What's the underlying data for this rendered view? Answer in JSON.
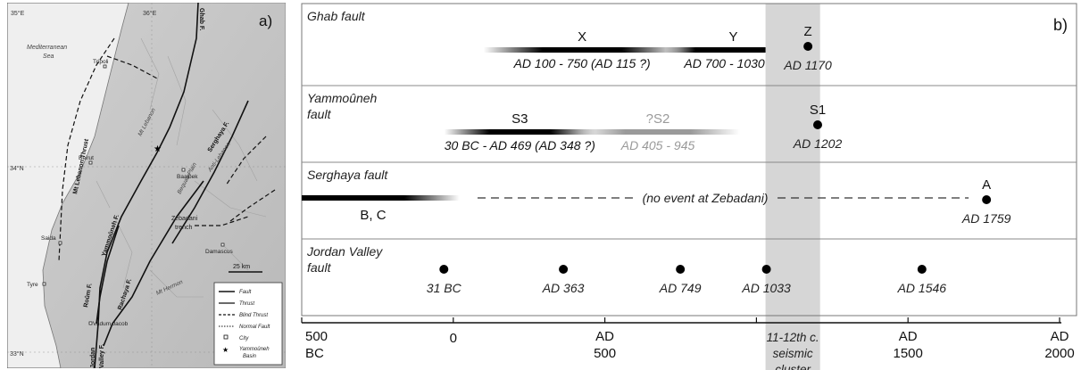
{
  "map": {
    "panel_label": "a)",
    "lon_labels": [
      "35°E",
      "36°E"
    ],
    "lat_labels": [
      "34°N",
      "33°N"
    ],
    "sea_label": [
      "Mediterranean",
      "Sea"
    ],
    "cities": [
      "Tripoli",
      "Beirut",
      "Baalbek",
      "Saida",
      "Tyre",
      "Damascus",
      "Vadum Jacob"
    ],
    "region_labels": {
      "mt_lebanon": "Mt Lebanon",
      "anti_lebanon": "Anti-Lebanon",
      "bequaa": "Bequaa Plain",
      "mt_hermon": "Mt Hermon",
      "zebadani": [
        "Zebadani",
        "trench"
      ]
    },
    "fault_labels": {
      "ghab": "Ghab F.",
      "serghaya": "Serghaya F.",
      "yammouneh": "Yammoûneh F.",
      "roum": "Roûm F.",
      "rachaya": "Rachaya F.",
      "jordan": "Jordan",
      "jordan2": "Valley F.",
      "mt_lebanon_thrust": "Mt Lebanon Thrust"
    },
    "scale_label": "25 km",
    "legend": {
      "items": [
        "Fault",
        "Thrust",
        "Blind Thrust",
        "Normal Fault",
        "City"
      ],
      "basin": [
        "Yammoûneh",
        "Basin"
      ]
    }
  },
  "chart": {
    "panel_label": "b)",
    "rows": [
      {
        "label": [
          "Ghab fault"
        ]
      },
      {
        "label": [
          "Yammoûneh",
          "fault"
        ]
      },
      {
        "label": [
          "Serghaya fault"
        ]
      },
      {
        "label": [
          "Jordan Valley",
          "fault"
        ]
      }
    ],
    "axis": {
      "xlim": [
        -500,
        2000
      ],
      "ticks": [
        {
          "value": -500,
          "lines": [
            "500",
            "BC"
          ]
        },
        {
          "value": 0,
          "lines": [
            "0"
          ]
        },
        {
          "value": 500,
          "lines": [
            "AD",
            "500"
          ]
        },
        {
          "value": 1500,
          "lines": [
            "AD",
            "1500"
          ]
        },
        {
          "value": 2000,
          "lines": [
            "AD",
            "2000"
          ]
        }
      ],
      "minor_tick": 1000
    },
    "cluster": {
      "start": 1030,
      "end": 1210,
      "lines": [
        "11-12th c.",
        "seismic",
        "cluster"
      ]
    },
    "ranges": [
      {
        "row": 0,
        "name": "X",
        "start": 100,
        "end": 750,
        "caption": "AD 100 - 750 (AD 115 ?)",
        "gray": false,
        "fade": "both"
      },
      {
        "row": 0,
        "name": "Y",
        "start": 700,
        "end": 1030,
        "caption": "AD 700 - 1030",
        "gray": false,
        "fade": "left"
      },
      {
        "row": 1,
        "name": "S3",
        "start": -30,
        "end": 469,
        "caption": "30 BC - AD 469 (AD 348 ?)",
        "gray": false,
        "fade": "both"
      },
      {
        "row": 1,
        "name": "?S2",
        "start": 405,
        "end": 945,
        "caption": "AD 405 - 945",
        "gray": true,
        "fade": "both"
      },
      {
        "row": 2,
        "name": "B, C",
        "start": -500,
        "end": 20,
        "caption": "",
        "gray": false,
        "fade": "right"
      }
    ],
    "events": [
      {
        "row": 0,
        "name": "Z",
        "year": 1170,
        "caption": "AD 1170"
      },
      {
        "row": 1,
        "name": "S1",
        "year": 1202,
        "caption": "AD 1202"
      },
      {
        "row": 2,
        "name": "A",
        "year": 1759,
        "caption": "AD 1759"
      },
      {
        "row": 3,
        "name": "",
        "year": -31,
        "caption": "31 BC"
      },
      {
        "row": 3,
        "name": "",
        "year": 363,
        "caption": "AD 363"
      },
      {
        "row": 3,
        "name": "",
        "year": 749,
        "caption": "AD 749"
      },
      {
        "row": 3,
        "name": "",
        "year": 1033,
        "caption": "AD 1033"
      },
      {
        "row": 3,
        "name": "",
        "year": 1546,
        "caption": "AD 1546"
      }
    ],
    "no_event": {
      "row": 2,
      "start": 80,
      "end": 1700,
      "text": "(no event at Zebadani)"
    }
  }
}
